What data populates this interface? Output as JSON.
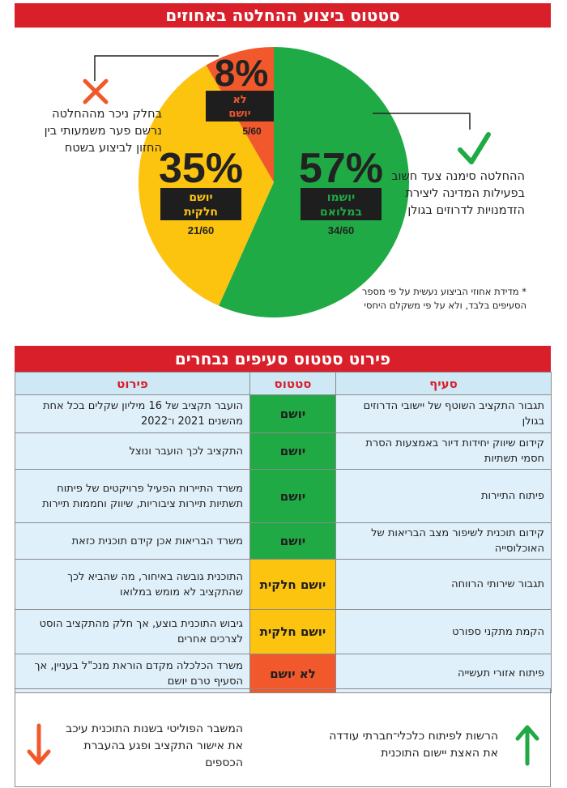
{
  "header": {
    "title": "סטטוס ביצוע ההחלטה באחוזים"
  },
  "chart_data": {
    "type": "pie",
    "total": 60,
    "slices": [
      {
        "percent_label": "57%",
        "label_line1": "יושמו",
        "label_line2": "במלואם",
        "fraction": "34/60",
        "value": 34,
        "color": "#1faa45"
      },
      {
        "percent_label": "35%",
        "label_line1": "יושם",
        "label_line2": "חלקית",
        "fraction": "21/60",
        "value": 21,
        "color": "#fcc30f"
      },
      {
        "percent_label": "8%",
        "label_line1": "לא",
        "label_line2": "יושם",
        "fraction": "5/60",
        "value": 5,
        "color": "#f1582c"
      }
    ]
  },
  "notes": {
    "right": "ההחלטה סימנה צעד חשוב בפעילות המדינה ליצירת הזדמנויות לדרוזים בגולן",
    "left": "בחלק ניכר מההחלטה נרשם פער משמעותי בין החזון לביצוע בשטח",
    "footnote": "* מדידת אחוזי הביצוע נעשית על פי מספר הסעיפים בלבד, ולא על פי משקלם היחסי"
  },
  "icons": {
    "check": "check-icon",
    "cross": "cross-icon",
    "arrow_up": "arrow-up-icon",
    "arrow_down": "arrow-down-icon"
  },
  "table": {
    "title": "פירוט סטטוס סעיפים נבחרים",
    "headers": {
      "section": "סעיף",
      "status": "סטטוס",
      "details": "פירוט"
    },
    "rows": [
      {
        "section": "תגבור התקציב השוטף של יישובי הדרוזים בגולן",
        "status": "יושם",
        "status_color": "#1faa45",
        "details": "הועבר תקציב של 16 מיליון שקלים בכל אחת מהשנים 2021 ו־2022"
      },
      {
        "section": "קידום שיווק יחידות דיור באמצעות הסרת חסמי תשתיות",
        "status": "יושם",
        "status_color": "#1faa45",
        "details": "התקציב לכך הועבר ונוצל"
      },
      {
        "section": "פיתוח התיירות",
        "status": "יושם",
        "status_color": "#1faa45",
        "details": "משרד התיירות הפעיל פרויקטים של פיתוח תשתיות תיירות ציבוריות, שיווק וחממות תיירות"
      },
      {
        "section": "קידום תוכנית לשיפור מצב הבריאות של האוכלוסייה",
        "status": "יושם",
        "status_color": "#1faa45",
        "details": "משרד הבריאות אכן קידם תוכנית כזאת"
      },
      {
        "section": "תגבור שירותי הרווחה",
        "status": "יושם חלקית",
        "status_color": "#fcc30f",
        "details": "התוכנית גובשה באיחור, מה שהביא לכך שהתקציב לא מומש במלואו"
      },
      {
        "section": "הקמת מתקני ספורט",
        "status": "יושם חלקית",
        "status_color": "#fcc30f",
        "details": "גיבוש התוכנית בוצע, אך חלק מהתקציב הוסט לצרכים אחרים"
      },
      {
        "section": "פיתוח אזורי תעשייה",
        "status": "לא יושם",
        "status_color": "#f1582c",
        "details": "משרד הכלכלה מקדם הוראת מנכ\"ל בעניין, אך הסעיף טרם יושם"
      }
    ]
  },
  "bottom": {
    "right": "הרשות לפיתוח כלכלי־חברתי עודדה את האצת יישום התוכנית",
    "left": "המשבר הפוליטי בשנות התוכנית עיכב את אישור התקציב ופגע בהעברת הכספים"
  }
}
